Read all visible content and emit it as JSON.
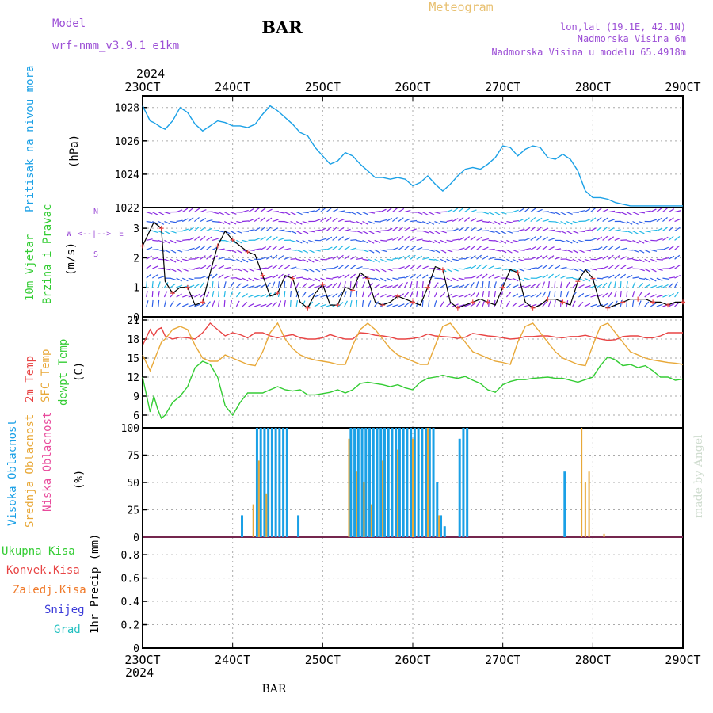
{
  "header": {
    "title": "BAR",
    "subtitle": "Meteogram",
    "model_label": "Model",
    "model_name": "wrf-nmm_v3.9.1  e1km",
    "location_line1": "lon,lat (19.1E, 42.1N)",
    "location_line2": "Nadmorska Visina 6m",
    "location_line3": "Nadmorska Visina u modelu 65.4918m",
    "credit": "made by Angel",
    "footer_station": "BAR",
    "year_top": "2024",
    "year_bottom": "2024"
  },
  "colors": {
    "pressure": "#1aa0e6",
    "temp2m": "#e84444",
    "sfc_temp": "#e8a838",
    "dewpoint": "#33cc33",
    "cloud_high": "#1aa0e6",
    "cloud_mid": "#e8a838",
    "cloud_low": "#e84b9c",
    "wind_purple": "#8a2be2",
    "wind_blue": "#2d5fe8",
    "wind_cyan": "#22b8e6",
    "title_purple": "#9c4fd6",
    "subtitle_yellow": "#e8c070"
  },
  "x_axis": {
    "tick_labels": [
      "23OCT",
      "24OCT",
      "25OCT",
      "26OCT",
      "27OCT",
      "28OCT",
      "29OCT"
    ],
    "range_hours": [
      0,
      144
    ]
  },
  "panels": {
    "pressure": {
      "ylabel_main": "Pritisak na nivou mora",
      "ylabel_unit": "(hPa)",
      "ticks": [
        "1022",
        "1024",
        "1026",
        "1028"
      ]
    },
    "wind": {
      "ylabel_main": "10m Vjetar",
      "ylabel_sub": "Brzina i Pravac",
      "ylabel_unit": "(m/s)",
      "compass_w": "W",
      "compass_e": "E",
      "compass_n": "N",
      "compass_s": "S",
      "compass_center": "<--|-->",
      "ticks": [
        "0",
        "1",
        "2",
        "3"
      ]
    },
    "temperature": {
      "ylabel_2m": "2m Temp",
      "ylabel_sfc": "SFC Temp",
      "ylabel_dew": "dewpt Temp",
      "ylabel_unit": "(C)",
      "ticks": [
        "6",
        "9",
        "12",
        "15",
        "18",
        "21"
      ]
    },
    "cloud": {
      "ylabel_high": "Visoka Oblacnost",
      "ylabel_mid": "Srednja Oblacnost",
      "ylabel_low": "Niska Oblacnost",
      "ylabel_unit": "(%)",
      "ticks": [
        "0",
        "25",
        "50",
        "75",
        "100"
      ]
    },
    "precip": {
      "legend_total": "Ukupna Kisa",
      "legend_conv": "Konvek.Kisa",
      "legend_frozen": "Zaledj.Kisa",
      "legend_snow": "Snijeg",
      "legend_grad": "Grad",
      "ylabel_unit": "1hr Precip (mm)",
      "ticks": [
        "0",
        "0.2",
        "0.4",
        "0.6",
        "0.8"
      ]
    }
  },
  "chart_data": [
    {
      "type": "line",
      "ylabel": "Pritisak na nivou mora (hPa)",
      "ylim": [
        1022,
        1028.7
      ],
      "x_hours": [
        0,
        2,
        3,
        5,
        6,
        8,
        10,
        12,
        14,
        16,
        18,
        20,
        22,
        24,
        26,
        28,
        30,
        32,
        34,
        36,
        38,
        40,
        42,
        44,
        46,
        48,
        50,
        52,
        54,
        56,
        58,
        60,
        62,
        64,
        66,
        68,
        70,
        72,
        74,
        76,
        78,
        80,
        82,
        84,
        86,
        88,
        90,
        92,
        94,
        96,
        98,
        100,
        102,
        104,
        106,
        108,
        110,
        112,
        114,
        116,
        118,
        120,
        122,
        124,
        126,
        128,
        130,
        132,
        134,
        136,
        138,
        140,
        142,
        144
      ],
      "series": [
        {
          "values": [
            1028.1,
            1027.2,
            1027.1,
            1026.8,
            1026.7,
            1027.2,
            1028.0,
            1027.7,
            1027.0,
            1026.6,
            1026.9,
            1027.2,
            1027.1,
            1026.9,
            1026.9,
            1026.8,
            1027.0,
            1027.6,
            1028.1,
            1027.8,
            1027.4,
            1027.0,
            1026.5,
            1026.3,
            1025.6,
            1025.1,
            1024.6,
            1024.8,
            1025.3,
            1025.1,
            1024.6,
            1024.2,
            1023.8,
            1023.8,
            1023.7,
            1023.8,
            1023.7,
            1023.3,
            1023.5,
            1023.9,
            1023.4,
            1023.0,
            1023.4,
            1023.9,
            1024.3,
            1024.4,
            1024.3,
            1024.6,
            1025.0,
            1025.7,
            1025.6,
            1025.1,
            1025.5,
            1025.7,
            1025.6,
            1025.0,
            1024.9,
            1025.2,
            1024.9,
            1024.2,
            1023.0,
            1022.6,
            1022.6,
            1022.5,
            1022.3,
            1022.2,
            1022.1,
            1022.1,
            1022.1,
            1022.1,
            1022.1,
            1022.1,
            1022.1,
            1022.1
          ]
        }
      ]
    },
    {
      "type": "line",
      "ylabel": "10m Vjetar Brzina i Pravac (m/s)",
      "ylim": [
        0,
        3.7
      ],
      "x_hours": [
        0,
        3,
        5,
        6,
        8,
        10,
        12,
        14,
        16,
        18,
        20,
        22,
        24,
        26,
        28,
        30,
        32,
        34,
        36,
        38,
        40,
        42,
        44,
        46,
        48,
        50,
        52,
        54,
        56,
        58,
        60,
        62,
        64,
        66,
        68,
        70,
        72,
        74,
        76,
        78,
        80,
        82,
        84,
        86,
        88,
        90,
        92,
        94,
        96,
        98,
        100,
        102,
        104,
        106,
        108,
        110,
        112,
        114,
        116,
        118,
        120,
        122,
        124,
        126,
        128,
        130,
        132,
        134,
        136,
        138,
        140,
        142,
        144
      ],
      "series": [
        {
          "name": "speed",
          "values": [
            2.4,
            3.2,
            3.0,
            1.2,
            0.8,
            1.0,
            1.0,
            0.4,
            0.5,
            1.5,
            2.4,
            2.9,
            2.6,
            2.4,
            2.2,
            2.1,
            1.4,
            0.7,
            0.8,
            1.4,
            1.3,
            0.5,
            0.3,
            0.8,
            1.1,
            0.4,
            0.4,
            1.0,
            0.9,
            1.5,
            1.3,
            0.5,
            0.4,
            0.5,
            0.7,
            0.6,
            0.5,
            0.4,
            1.0,
            1.7,
            1.6,
            0.5,
            0.3,
            0.4,
            0.5,
            0.6,
            0.5,
            0.4,
            1.0,
            1.6,
            1.5,
            0.5,
            0.3,
            0.4,
            0.6,
            0.6,
            0.5,
            0.4,
            1.2,
            1.6,
            1.3,
            0.4,
            0.3,
            0.4,
            0.5,
            0.6,
            0.6,
            0.6,
            0.5,
            0.5,
            0.4,
            0.5,
            0.5
          ]
        }
      ]
    },
    {
      "type": "line",
      "ylabel": "Temp (C)",
      "ylim": [
        4,
        21.5
      ],
      "x_hours": [
        0,
        2,
        3,
        4,
        5,
        6,
        8,
        10,
        12,
        14,
        16,
        18,
        20,
        22,
        24,
        26,
        28,
        30,
        32,
        34,
        36,
        38,
        40,
        42,
        44,
        46,
        48,
        50,
        52,
        54,
        56,
        58,
        60,
        62,
        64,
        66,
        68,
        70,
        72,
        74,
        76,
        78,
        80,
        82,
        84,
        86,
        88,
        90,
        92,
        94,
        96,
        98,
        100,
        102,
        104,
        106,
        108,
        110,
        112,
        114,
        116,
        118,
        120,
        122,
        124,
        126,
        128,
        130,
        132,
        134,
        136,
        138,
        140,
        142,
        144
      ],
      "series": [
        {
          "name": "2m Temp",
          "values": [
            17.0,
            19.5,
            18.5,
            19.5,
            19.8,
            18.5,
            18.0,
            18.3,
            18.2,
            18.0,
            19.0,
            20.5,
            19.5,
            18.5,
            19.0,
            18.7,
            18.2,
            19.0,
            19.0,
            18.5,
            18.2,
            18.5,
            18.7,
            18.2,
            18.0,
            18.0,
            18.2,
            18.7,
            18.3,
            18.0,
            18.0,
            19.0,
            18.9,
            18.6,
            18.5,
            18.3,
            18.0,
            18.0,
            18.1,
            18.3,
            18.8,
            18.5,
            18.4,
            18.3,
            18.1,
            18.3,
            18.9,
            18.7,
            18.5,
            18.4,
            18.2,
            18.0,
            18.1,
            18.4,
            18.4,
            18.5,
            18.5,
            18.3,
            18.2,
            18.4,
            18.4,
            18.6,
            18.3,
            18.0,
            17.8,
            17.9,
            18.4,
            18.5,
            18.5,
            18.2,
            18.2,
            18.5,
            19.0,
            19.0,
            19.0
          ]
        },
        {
          "name": "SFC Temp",
          "values": [
            15.5,
            13.0,
            14.5,
            16.0,
            17.5,
            18.0,
            19.5,
            20.0,
            19.5,
            17.0,
            15.0,
            14.5,
            14.5,
            15.5,
            15.0,
            14.5,
            14.0,
            13.8,
            16.0,
            19.0,
            20.5,
            18.0,
            16.5,
            15.5,
            15.0,
            14.7,
            14.5,
            14.3,
            14.0,
            14.0,
            17.0,
            19.5,
            20.5,
            19.5,
            18.0,
            16.5,
            15.5,
            15.0,
            14.5,
            14.0,
            14.0,
            17.0,
            20.0,
            20.5,
            19.0,
            17.5,
            16.0,
            15.5,
            15.0,
            14.5,
            14.3,
            14.0,
            17.5,
            20.0,
            20.5,
            19.0,
            17.5,
            16.0,
            15.0,
            14.5,
            14.0,
            13.8,
            17.0,
            20.0,
            20.5,
            19.0,
            17.5,
            16.0,
            15.5,
            15.0,
            14.7,
            14.5,
            14.3,
            14.2,
            14.0
          ]
        },
        {
          "name": "dewpt Temp",
          "values": [
            12.0,
            6.5,
            9.0,
            7.0,
            5.5,
            6.0,
            8.0,
            9.0,
            10.5,
            13.5,
            14.5,
            14.0,
            12.0,
            7.5,
            6.0,
            8.0,
            9.5,
            9.5,
            9.5,
            10.0,
            10.5,
            10.0,
            9.8,
            10.0,
            9.2,
            9.2,
            9.4,
            9.6,
            10.0,
            9.5,
            10.0,
            11.0,
            11.2,
            11.0,
            10.8,
            10.5,
            10.8,
            10.3,
            10.0,
            11.2,
            11.8,
            12.0,
            12.3,
            12.0,
            11.8,
            12.1,
            11.5,
            11.0,
            10.0,
            9.6,
            10.8,
            11.3,
            11.6,
            11.6,
            11.8,
            11.9,
            12.0,
            11.8,
            11.8,
            11.5,
            11.2,
            11.6,
            12.0,
            13.8,
            15.2,
            14.7,
            13.8,
            14.0,
            13.5,
            13.8,
            13.0,
            12.0,
            12.0,
            11.5,
            11.7
          ]
        }
      ]
    },
    {
      "type": "bar",
      "ylabel": "Oblacnost (%)",
      "ylim": [
        0,
        100
      ],
      "series": [
        {
          "name": "Visoka Oblacnost",
          "bars": [
            [
              26.5,
              20
            ],
            [
              30.5,
              100
            ],
            [
              31.5,
              100
            ],
            [
              32.5,
              100
            ],
            [
              33.5,
              100
            ],
            [
              34.5,
              100
            ],
            [
              35.5,
              100
            ],
            [
              36.5,
              100
            ],
            [
              37.5,
              100
            ],
            [
              38.5,
              100
            ],
            [
              41.5,
              20
            ],
            [
              55.5,
              100
            ],
            [
              56.5,
              100
            ],
            [
              57.5,
              100
            ],
            [
              58.5,
              100
            ],
            [
              59.5,
              100
            ],
            [
              60.5,
              100
            ],
            [
              61.5,
              100
            ],
            [
              62.5,
              100
            ],
            [
              63.5,
              100
            ],
            [
              64.5,
              100
            ],
            [
              65.5,
              100
            ],
            [
              66.5,
              100
            ],
            [
              67.5,
              100
            ],
            [
              68.5,
              100
            ],
            [
              69.5,
              100
            ],
            [
              70.5,
              100
            ],
            [
              71.5,
              100
            ],
            [
              72.5,
              100
            ],
            [
              73.5,
              100
            ],
            [
              74.5,
              100
            ],
            [
              75.5,
              100
            ],
            [
              76.5,
              100
            ],
            [
              77.5,
              100
            ],
            [
              78.5,
              50
            ],
            [
              79.5,
              20
            ],
            [
              80.5,
              10
            ],
            [
              84.5,
              90
            ],
            [
              85.5,
              100
            ],
            [
              86.5,
              100
            ],
            [
              112.5,
              60
            ]
          ]
        },
        {
          "name": "Srednja Oblacnost",
          "bars": [
            [
              29.5,
              30
            ],
            [
              31.0,
              70
            ],
            [
              33.0,
              40
            ],
            [
              55.0,
              90
            ],
            [
              57.0,
              60
            ],
            [
              59.0,
              50
            ],
            [
              61.0,
              30
            ],
            [
              64.0,
              70
            ],
            [
              68.0,
              80
            ],
            [
              72.0,
              90
            ],
            [
              76.0,
              100
            ],
            [
              79.0,
              20
            ],
            [
              117.0,
              100
            ],
            [
              118.0,
              50
            ],
            [
              119.0,
              60
            ],
            [
              123.0,
              3
            ]
          ]
        },
        {
          "name": "Niska Oblacnost",
          "bars": []
        }
      ]
    },
    {
      "type": "bar",
      "ylabel": "1hr Precip (mm)",
      "ylim": [
        0,
        0.95
      ],
      "series": [
        {
          "name": "Ukupna Kisa",
          "bars": []
        }
      ]
    }
  ]
}
